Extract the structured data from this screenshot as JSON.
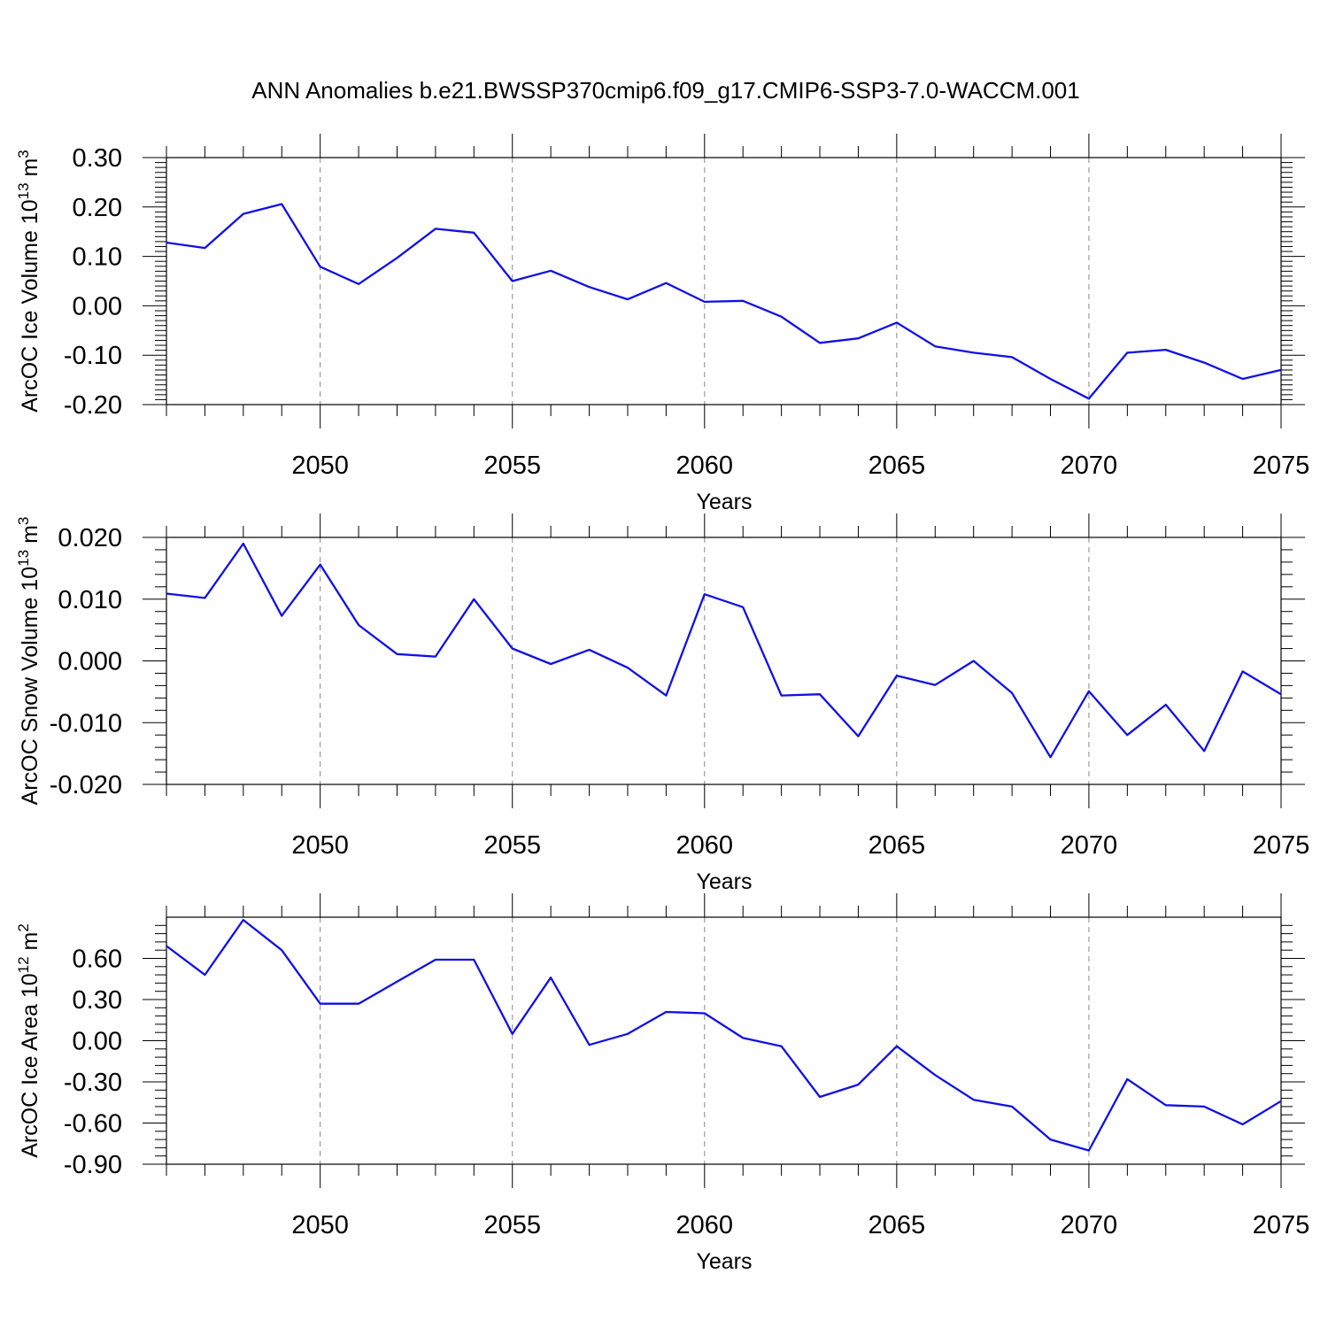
{
  "title": "ANN Anomalies b.e21.BWSSP370cmip6.f09_g17.CMIP6-SSP3-7.0-WACCM.001",
  "line_color": "#1010e6",
  "chart_data": [
    {
      "type": "line",
      "ylabel_main": "ArcOC Ice Volume 10",
      "ylabel_sup": "13",
      "ylabel_unit": " m",
      "ylabel_unit_sup": "3",
      "xlabel": "Years",
      "xlim": [
        2046,
        2075
      ],
      "ylim": [
        -0.2,
        0.3
      ],
      "yticks": [
        -0.2,
        -0.1,
        0.0,
        0.1,
        0.2,
        0.3
      ],
      "ytick_labels": [
        "-0.20",
        "-0.10",
        "0.00",
        "0.10",
        "0.20",
        "0.30"
      ],
      "yminor": [
        -0.19,
        -0.18,
        -0.17,
        -0.16,
        -0.15,
        -0.14,
        -0.13,
        -0.12,
        -0.11,
        -0.09,
        -0.08,
        -0.07,
        -0.06,
        -0.05,
        -0.04,
        -0.03,
        -0.02,
        -0.01,
        0.01,
        0.02,
        0.03,
        0.04,
        0.05,
        0.06,
        0.07,
        0.08,
        0.09,
        0.11,
        0.12,
        0.13,
        0.14,
        0.15,
        0.16,
        0.17,
        0.18,
        0.19,
        0.21,
        0.22,
        0.23,
        0.24,
        0.25,
        0.26,
        0.27,
        0.28,
        0.29
      ],
      "xticks": [
        2050,
        2055,
        2060,
        2065,
        2070,
        2075
      ],
      "xtick_labels": [
        "2050",
        "2055",
        "2060",
        "2065",
        "2070",
        "2075"
      ],
      "grid": "vertical dashed at major x ticks",
      "x": [
        2046,
        2047,
        2048,
        2049,
        2050,
        2051,
        2052,
        2053,
        2054,
        2055,
        2056,
        2057,
        2058,
        2059,
        2060,
        2061,
        2062,
        2063,
        2064,
        2065,
        2066,
        2067,
        2068,
        2069,
        2070,
        2071,
        2072,
        2073,
        2074,
        2075
      ],
      "y": [
        0.128,
        0.117,
        0.186,
        0.206,
        0.079,
        0.044,
        0.097,
        0.156,
        0.148,
        0.05,
        0.071,
        0.038,
        0.013,
        0.046,
        0.008,
        0.01,
        -0.022,
        -0.075,
        -0.066,
        -0.034,
        -0.082,
        -0.095,
        -0.104,
        -0.148,
        -0.188,
        -0.095,
        -0.089,
        -0.115,
        -0.148,
        -0.13
      ]
    },
    {
      "type": "line",
      "ylabel_main": "ArcOC Snow Volume 10",
      "ylabel_sup": "13",
      "ylabel_unit": " m",
      "ylabel_unit_sup": "3",
      "xlabel": "Years",
      "xlim": [
        2046,
        2075
      ],
      "ylim": [
        -0.02,
        0.02
      ],
      "yticks": [
        -0.02,
        -0.01,
        0.0,
        0.01,
        0.02
      ],
      "ytick_labels": [
        "-0.020",
        "-0.010",
        "0.000",
        "0.010",
        "0.020"
      ],
      "yminor": [
        -0.018,
        -0.016,
        -0.014,
        -0.012,
        -0.008,
        -0.006,
        -0.004,
        -0.002,
        0.002,
        0.004,
        0.006,
        0.008,
        0.012,
        0.014,
        0.016,
        0.018
      ],
      "xticks": [
        2050,
        2055,
        2060,
        2065,
        2070,
        2075
      ],
      "xtick_labels": [
        "2050",
        "2055",
        "2060",
        "2065",
        "2070",
        "2075"
      ],
      "grid": "vertical dashed at major x ticks",
      "x": [
        2046,
        2047,
        2048,
        2049,
        2050,
        2051,
        2052,
        2053,
        2054,
        2055,
        2056,
        2057,
        2058,
        2059,
        2060,
        2061,
        2062,
        2063,
        2064,
        2065,
        2066,
        2067,
        2068,
        2069,
        2070,
        2071,
        2072,
        2073,
        2074,
        2075
      ],
      "y": [
        0.0109,
        0.0102,
        0.019,
        0.0073,
        0.0156,
        0.0058,
        0.0011,
        0.0007,
        0.01,
        0.002,
        -0.0005,
        0.0018,
        -0.0011,
        -0.0056,
        0.0108,
        0.0087,
        -0.0056,
        -0.0054,
        -0.0122,
        -0.0024,
        -0.0039,
        0.0,
        -0.0052,
        -0.0156,
        -0.0049,
        -0.012,
        -0.0071,
        -0.0146,
        -0.0017,
        -0.0054
      ]
    },
    {
      "type": "line",
      "ylabel_main": "ArcOC Ice Area 10",
      "ylabel_sup": "12",
      "ylabel_unit": " m",
      "ylabel_unit_sup": "2",
      "xlabel": "Years",
      "xlim": [
        2046,
        2075
      ],
      "ylim": [
        -0.9,
        0.9
      ],
      "yticks": [
        -0.9,
        -0.6,
        -0.3,
        0.0,
        0.3,
        0.6
      ],
      "ytick_labels": [
        "-0.90",
        "-0.60",
        "-0.30",
        "0.00",
        "0.30",
        "0.60"
      ],
      "yminor": [
        -0.84,
        -0.78,
        -0.72,
        -0.66,
        -0.54,
        -0.48,
        -0.42,
        -0.36,
        -0.24,
        -0.18,
        -0.12,
        -0.06,
        0.06,
        0.12,
        0.18,
        0.24,
        0.36,
        0.42,
        0.48,
        0.54,
        0.66,
        0.72,
        0.78,
        0.84
      ],
      "xticks": [
        2050,
        2055,
        2060,
        2065,
        2070,
        2075
      ],
      "xtick_labels": [
        "2050",
        "2055",
        "2060",
        "2065",
        "2070",
        "2075"
      ],
      "grid": "vertical dashed at major x ticks",
      "x": [
        2046,
        2047,
        2048,
        2049,
        2050,
        2051,
        2052,
        2053,
        2054,
        2055,
        2056,
        2057,
        2058,
        2059,
        2060,
        2061,
        2062,
        2063,
        2064,
        2065,
        2066,
        2067,
        2068,
        2069,
        2070,
        2071,
        2072,
        2073,
        2074,
        2075
      ],
      "y": [
        0.69,
        0.48,
        0.88,
        0.66,
        0.27,
        0.27,
        0.43,
        0.59,
        0.59,
        0.05,
        0.46,
        -0.03,
        0.05,
        0.21,
        0.2,
        0.02,
        -0.04,
        -0.41,
        -0.32,
        -0.04,
        -0.25,
        -0.43,
        -0.48,
        -0.72,
        -0.8,
        -0.28,
        -0.47,
        -0.48,
        -0.61,
        -0.44
      ]
    }
  ]
}
